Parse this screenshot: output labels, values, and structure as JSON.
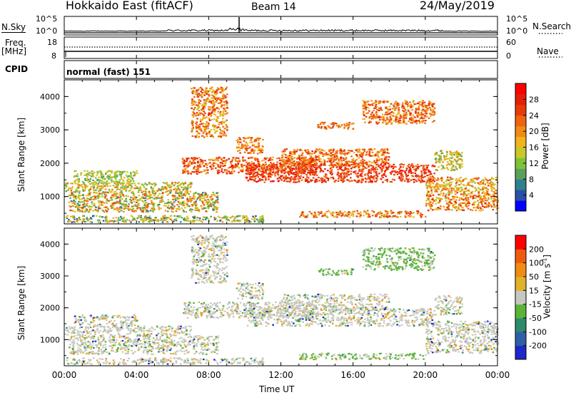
{
  "header": {
    "title": "Hokkaido East (fitACF)",
    "beam": "Beam 14",
    "date": "24/May/2019"
  },
  "top_panels": {
    "nsky_label": "N.Sky",
    "nsky_ticks": [
      "10^5",
      "10^0"
    ],
    "nsearch_label": "N.Search",
    "freq_label": "Freq.",
    "freq_unit": "[MHz]",
    "freq_ticks": [
      "18",
      "8"
    ],
    "nave_label": "Nave",
    "nave_ticks": [
      "60",
      "0"
    ],
    "cpid_label": "CPID",
    "cpid_value": "normal (fast) 151"
  },
  "chart_data": [
    {
      "type": "heatmap",
      "panel": "power",
      "ylabel": "Slant Range [km]",
      "yticks": [
        1000,
        2000,
        3000,
        4000
      ],
      "ylim": [
        180,
        4500
      ],
      "xlim": [
        0,
        24
      ],
      "colorbar": {
        "label": "Power [dB]",
        "ticks": [
          4,
          8,
          12,
          16,
          20,
          24,
          28
        ],
        "colors": [
          "#0000ff",
          "#2a4fa8",
          "#2f7f8f",
          "#5aa05a",
          "#7fc23a",
          "#c8c828",
          "#f0b41e",
          "#f08c14",
          "#f0640f",
          "#e63c0a",
          "#e61e0a",
          "#ff0000"
        ]
      }
    },
    {
      "type": "heatmap",
      "panel": "velocity",
      "ylabel": "Slant Range [km]",
      "yticks": [
        1000,
        2000,
        3000,
        4000
      ],
      "ylim": [
        180,
        4500
      ],
      "xlim": [
        0,
        24
      ],
      "colorbar": {
        "label": "Velocity [m s^-1]",
        "ticks": [
          200,
          100,
          50,
          15,
          -15,
          -50,
          -100,
          -200
        ],
        "colors": [
          "#1e28c8",
          "#2f5fa8",
          "#2d8a6a",
          "#5ab43a",
          "#c8c8c0",
          "#e0b428",
          "#f08c14",
          "#f05a0f",
          "#ff0000"
        ]
      }
    }
  ],
  "xaxis": {
    "label": "Time UT",
    "ticks": [
      "00:00",
      "04:00",
      "08:00",
      "12:00",
      "16:00",
      "20:00",
      "00:00"
    ]
  }
}
